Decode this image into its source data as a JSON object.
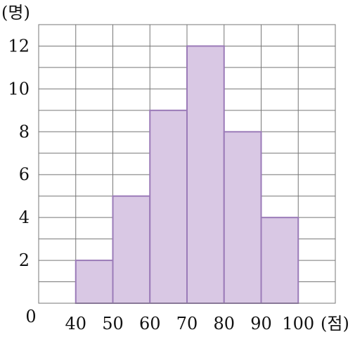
{
  "chart_data": {
    "type": "bar",
    "subtype": "histogram",
    "bins": [
      {
        "from": 40,
        "to": 50,
        "value": 2
      },
      {
        "from": 50,
        "to": 60,
        "value": 5
      },
      {
        "from": 60,
        "to": 70,
        "value": 9
      },
      {
        "from": 70,
        "to": 80,
        "value": 12
      },
      {
        "from": 80,
        "to": 90,
        "value": 8
      },
      {
        "from": 90,
        "to": 100,
        "value": 4
      }
    ],
    "xticks": [
      "40",
      "50",
      "60",
      "70",
      "80",
      "90",
      "100"
    ],
    "yticks": [
      "2",
      "4",
      "6",
      "8",
      "10",
      "12"
    ],
    "origin_label": "0",
    "xunit": "(점)",
    "yunit": "(명)",
    "xlim": [
      30,
      110
    ],
    "ylim": [
      0,
      13
    ],
    "grid": true,
    "bar_fill": "#d9c8e4",
    "bar_stroke": "#9b7bb8",
    "grid_color": "#777777"
  }
}
